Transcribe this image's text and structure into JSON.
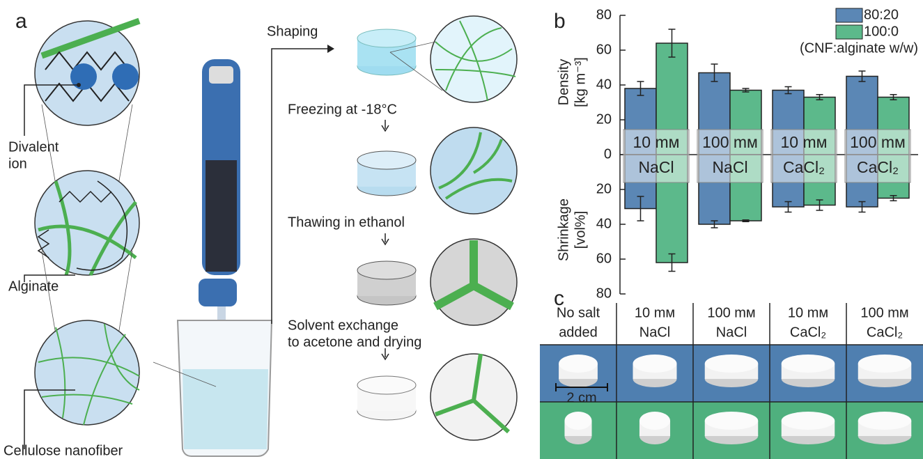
{
  "panel_a": {
    "letter": "a",
    "labels": {
      "divalent_ion": [
        "Divalent",
        "ion"
      ],
      "alginate": "Alginate",
      "nanofiber": "Cellulose nanofiber"
    },
    "steps": [
      "Shaping",
      "Freezing at -18°C",
      "Thawing in ethanol",
      [
        "Solvent exchange",
        "to acetone and drying"
      ]
    ]
  },
  "chart_data": {
    "type": "bar",
    "letter": "b",
    "categories": [
      [
        "10 mм",
        "NaCl"
      ],
      [
        "100 mм",
        "NaCl"
      ],
      [
        "10 mм",
        "CaCl₂"
      ],
      [
        "100 mм",
        "CaCl₂"
      ]
    ],
    "density_label": [
      "Density",
      "[kg m⁻³]"
    ],
    "shrinkage_label": [
      "Shrinkage",
      "[vol%]"
    ],
    "density_ylim": [
      0,
      80
    ],
    "density_yticks": [
      0,
      20,
      40,
      60,
      80
    ],
    "shrinkage_ylim": [
      0,
      80
    ],
    "shrinkage_yticks": [
      20,
      40,
      60,
      80
    ],
    "legend_note": "(CNF:alginate w/w)",
    "legend": "upper right",
    "series": [
      {
        "name": "80:20",
        "color": "#5b87b5",
        "density": [
          38,
          47,
          37,
          45
        ],
        "density_err": [
          4,
          5,
          2,
          3
        ],
        "shrinkage": [
          31,
          40,
          30,
          30
        ],
        "shrinkage_err": [
          7,
          2,
          3,
          3
        ]
      },
      {
        "name": "100:0",
        "color": "#5cb98b",
        "density": [
          64,
          37,
          33,
          33
        ],
        "density_err": [
          8,
          1,
          1.5,
          1.5
        ],
        "shrinkage": [
          62,
          38,
          29,
          25
        ],
        "shrinkage_err": [
          5,
          0.5,
          3,
          1.5
        ]
      }
    ]
  },
  "panel_c": {
    "letter": "c",
    "headers": [
      [
        "No salt",
        "added"
      ],
      [
        "10 mм",
        "NaCl"
      ],
      [
        "100 mм",
        "NaCl"
      ],
      [
        "10 mм",
        "CaCl₂"
      ],
      [
        "100 mм",
        "CaCl₂"
      ]
    ],
    "scale": "2 cm"
  }
}
